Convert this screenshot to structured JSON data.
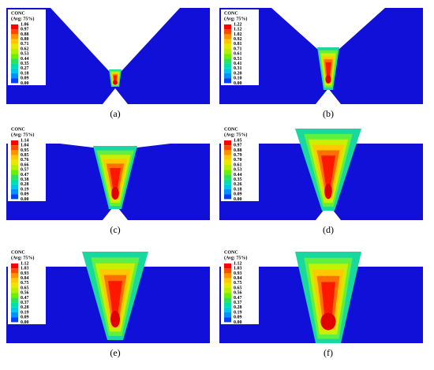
{
  "panels": [
    {
      "label": "(a)",
      "legend": {
        "title": "CONC",
        "subtitle": "(Avg: 75%)",
        "values": [
          "1.06",
          "0.97",
          "0.88",
          "0.80",
          "0.71",
          "0.62",
          "0.53",
          "0.44",
          "0.35",
          "0.27",
          "0.18",
          "0.09",
          "0.00"
        ]
      }
    },
    {
      "label": "(b)",
      "legend": {
        "title": "CONC",
        "subtitle": "(Avg: 75%)",
        "values": [
          "1.22",
          "1.12",
          "1.02",
          "0.92",
          "0.81",
          "0.71",
          "0.61",
          "0.51",
          "0.41",
          "0.31",
          "0.20",
          "0.10",
          "0.00"
        ]
      }
    },
    {
      "label": "(c)",
      "legend": {
        "title": "CONC",
        "subtitle": "(Avg: 75%)",
        "values": [
          "1.14",
          "1.04",
          "0.95",
          "0.85",
          "0.76",
          "0.66",
          "0.57",
          "0.47",
          "0.38",
          "0.28",
          "0.19",
          "0.09",
          "0.00"
        ]
      }
    },
    {
      "label": "(d)",
      "legend": {
        "title": "CONC",
        "subtitle": "(Avg: 75%)",
        "values": [
          "1.05",
          "0.97",
          "0.88",
          "0.79",
          "0.70",
          "0.61",
          "0.53",
          "0.44",
          "0.35",
          "0.26",
          "0.18",
          "0.09",
          "0.00"
        ]
      }
    },
    {
      "label": "(e)",
      "legend": {
        "title": "CONC",
        "subtitle": "(Avg: 75%)",
        "values": [
          "1.12",
          "1.03",
          "0.93",
          "0.84",
          "0.75",
          "0.65",
          "0.56",
          "0.47",
          "0.37",
          "0.28",
          "0.19",
          "0.09",
          "0.00"
        ]
      }
    },
    {
      "label": "(f)",
      "legend": {
        "title": "CONC",
        "subtitle": "(Avg: 75%)",
        "values": [
          "1.12",
          "1.03",
          "0.93",
          "0.84",
          "0.75",
          "0.65",
          "0.56",
          "0.47",
          "0.37",
          "0.28",
          "0.19",
          "0.09",
          "0.00"
        ]
      }
    }
  ]
}
